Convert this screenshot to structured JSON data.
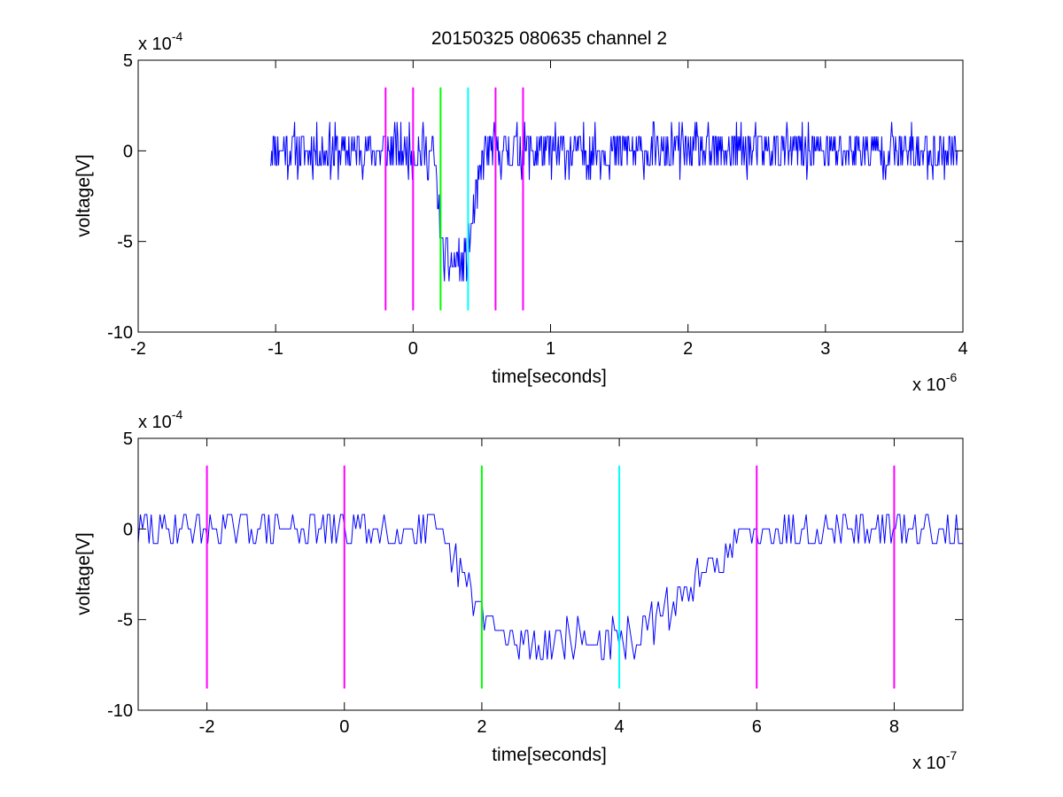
{
  "title": "20150325 080635 channel 2",
  "chart_data": [
    {
      "type": "line",
      "xlabel": "time[seconds]",
      "ylabel": "voltage[V]",
      "x_multiplier_label": "x 10",
      "x_multiplier_exponent": "-6",
      "y_multiplier_label": "x 10",
      "y_multiplier_exponent": "-4",
      "xlim": [
        -2,
        4
      ],
      "ylim": [
        -10,
        5
      ],
      "xticks": [
        -2,
        -1,
        0,
        1,
        2,
        3,
        4
      ],
      "xtick_labels": [
        "-2",
        "-1",
        "0",
        "1",
        "2",
        "3",
        "4"
      ],
      "yticks": [
        5,
        0,
        -5,
        -10
      ],
      "ytick_labels": [
        "5",
        "0",
        "-5",
        "-10"
      ],
      "series": [
        {
          "color": "#0000ff",
          "signal": {
            "x_start": -1.04,
            "x_end": 3.96,
            "dip_start": 0.15,
            "dip_full": 0.22,
            "dip_end_start": 0.38,
            "dip_end": 0.52,
            "baseline": 0.0,
            "dip_level": -6.2,
            "noise": 1.3
          }
        }
      ],
      "vertical_markers": [
        {
          "x": -0.2,
          "color": "#ff00ff"
        },
        {
          "x": 0.0,
          "color": "#ff00ff"
        },
        {
          "x": 0.2,
          "color": "#00ff00"
        },
        {
          "x": 0.4,
          "color": "#00ffff"
        },
        {
          "x": 0.6,
          "color": "#ff00ff"
        },
        {
          "x": 0.8,
          "color": "#ff00ff"
        }
      ],
      "marker_range": [
        -8.8,
        3.5
      ],
      "grid": false
    },
    {
      "type": "line",
      "xlabel": "time[seconds]",
      "ylabel": "voltage[V]",
      "x_multiplier_label": "x 10",
      "x_multiplier_exponent": "-7",
      "y_multiplier_label": "x 10",
      "y_multiplier_exponent": "-4",
      "xlim": [
        -3,
        9
      ],
      "ylim": [
        -10,
        5
      ],
      "xticks": [
        -2,
        0,
        2,
        4,
        6,
        8
      ],
      "xtick_labels": [
        "-2",
        "0",
        "2",
        "4",
        "6",
        "8"
      ],
      "yticks": [
        5,
        0,
        -5,
        -10
      ],
      "ytick_labels": [
        "5",
        "0",
        "-5",
        "-10"
      ],
      "series": [
        {
          "color": "#0000ff",
          "signal": {
            "x_start": -3,
            "x_end": 9,
            "dip_start": 1.3,
            "dip_full": 2.3,
            "dip_end_start": 4.2,
            "dip_end": 6.0,
            "baseline": 0.0,
            "dip_level": -6.2,
            "noise": 1.1
          }
        }
      ],
      "vertical_markers": [
        {
          "x": -2,
          "color": "#ff00ff"
        },
        {
          "x": 0,
          "color": "#ff00ff"
        },
        {
          "x": 2,
          "color": "#00ff00"
        },
        {
          "x": 4,
          "color": "#00ffff"
        },
        {
          "x": 6,
          "color": "#ff00ff"
        },
        {
          "x": 8,
          "color": "#ff00ff"
        }
      ],
      "marker_range": [
        -8.8,
        3.5
      ],
      "grid": false
    }
  ]
}
